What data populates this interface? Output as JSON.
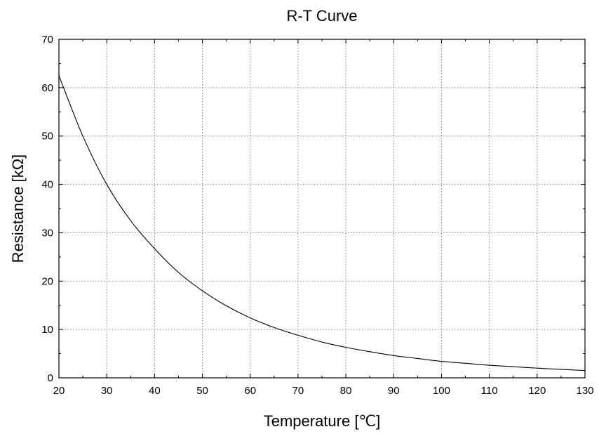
{
  "chart_data": {
    "type": "line",
    "title": "R-T Curve",
    "xlabel": "Temperature [℃]",
    "ylabel": "Resistance [kΩ]",
    "xlim": [
      20,
      130
    ],
    "ylim": [
      0,
      70
    ],
    "x_ticks": [
      20,
      30,
      40,
      50,
      60,
      70,
      80,
      90,
      100,
      110,
      120,
      130
    ],
    "y_ticks": [
      0,
      10,
      20,
      30,
      40,
      50,
      60,
      70
    ],
    "grid": true,
    "colors": {
      "line": "#000000",
      "grid": "#808080",
      "frame": "#000000"
    },
    "series": [
      {
        "x": [
          20,
          25,
          30,
          35,
          40,
          45,
          50,
          55,
          60,
          65,
          70,
          75,
          80,
          85,
          90,
          95,
          100,
          105,
          110,
          115,
          120,
          125,
          130
        ],
        "y": [
          62.5,
          50.0,
          40.0,
          32.5,
          26.7,
          21.8,
          18.0,
          14.9,
          12.4,
          10.4,
          8.8,
          7.4,
          6.3,
          5.4,
          4.6,
          4.0,
          3.4,
          3.0,
          2.6,
          2.3,
          2.0,
          1.75,
          1.5
        ]
      }
    ]
  }
}
